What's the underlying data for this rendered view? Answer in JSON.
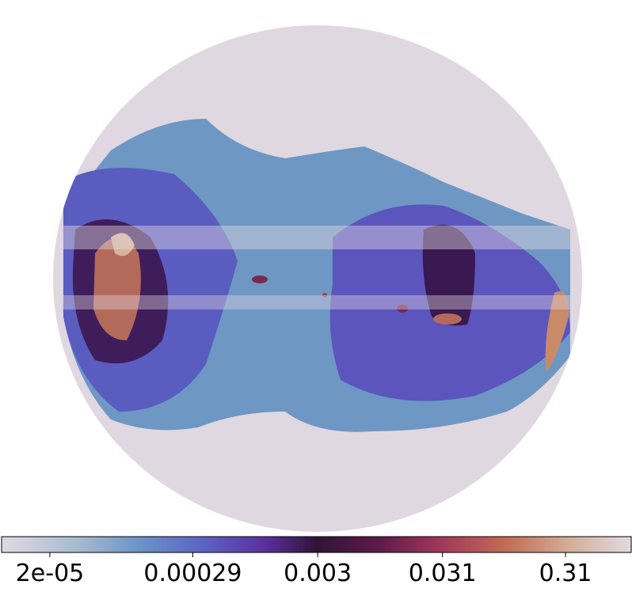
{
  "colorbar": {
    "scale": "log",
    "lim": [
      8.1e-06,
      1.06
    ],
    "ticks": [
      {
        "value": 2e-05,
        "label": "2e-05"
      },
      {
        "value": 0.00029,
        "label": "0.00029"
      },
      {
        "value": 0.003,
        "label": "0.003"
      },
      {
        "value": 0.031,
        "label": "0.031"
      },
      {
        "value": 0.31,
        "label": "0.31"
      }
    ]
  }
}
